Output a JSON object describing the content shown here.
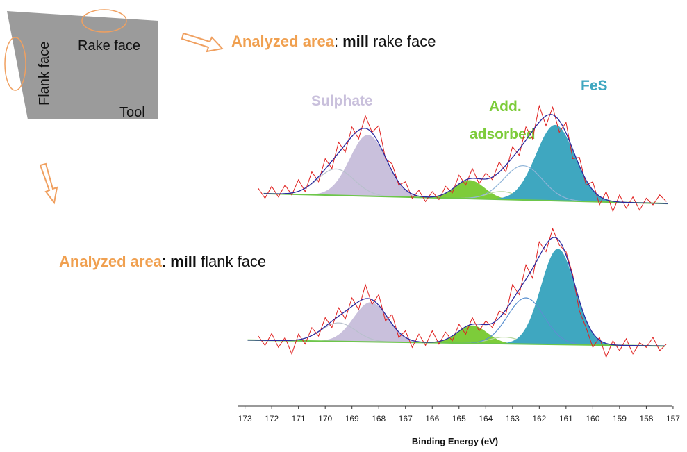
{
  "tool_diagram": {
    "labels": [
      "Rake face",
      "Flank face",
      "Tool"
    ]
  },
  "chart_data": [
    {
      "type": "spectrum",
      "caption": [
        "Analyzed area",
        ":",
        "mill",
        "rake face"
      ],
      "xlim": [
        173.25,
        157.05
      ],
      "ylim": [
        -40,
        190
      ],
      "baseline": {
        "color": "#6dc64a",
        "x": [
          172.3,
          157.2
        ],
        "values": [
          17,
          2
        ]
      },
      "components": [
        {
          "name": "Sulphate",
          "color": "#c9c0dc",
          "filled": true,
          "center": 168.4,
          "height": 93,
          "fwhm": 1.6
        },
        {
          "color": "#b8c0cc",
          "filled": false,
          "center": 169.6,
          "height": 40,
          "fwhm": 1.6
        },
        {
          "name": [
            "Add.",
            "adsorbed"
          ],
          "color": "#7dcc3a",
          "filled": true,
          "center": 164.6,
          "height": 28,
          "fwhm": 1.3
        },
        {
          "color": "#b8d8a0",
          "filled": false,
          "center": 163.4,
          "height": 12,
          "fwhm": 1.3
        },
        {
          "name": "FeS",
          "color": "#3fa7c0",
          "filled": true,
          "center": 161.4,
          "height": 115,
          "fwhm": 1.7
        },
        {
          "color": "#8fb4d8",
          "filled": false,
          "center": 162.6,
          "height": 52,
          "fwhm": 1.7
        }
      ],
      "envelope_color": "#2a2aa0",
      "x": [
        172.5,
        172.25,
        172,
        171.75,
        171.5,
        171.25,
        171,
        170.75,
        170.5,
        170.25,
        170,
        169.75,
        169.5,
        169.25,
        169,
        168.75,
        168.5,
        168.25,
        168,
        167.75,
        167.5,
        167.25,
        167,
        166.75,
        166.5,
        166.25,
        166,
        165.75,
        165.5,
        165.25,
        165,
        164.75,
        164.5,
        164.25,
        164,
        163.75,
        163.5,
        163.25,
        163,
        162.75,
        162.5,
        162.25,
        162,
        161.75,
        161.5,
        161.25,
        161,
        160.75,
        160.5,
        160.25,
        160,
        159.75,
        159.5,
        159.25,
        159,
        158.75,
        158.5,
        158.25,
        158,
        157.75,
        157.5,
        157.25
      ],
      "raw": {
        "color": "#e0201f",
        "values": [
          25,
          10,
          28,
          12,
          30,
          15,
          38,
          20,
          50,
          35,
          70,
          55,
          95,
          80,
          118,
          100,
          135,
          110,
          120,
          70,
          62,
          30,
          35,
          10,
          22,
          5,
          20,
          8,
          28,
          18,
          45,
          30,
          55,
          32,
          48,
          38,
          65,
          50,
          88,
          75,
          118,
          100,
          150,
          120,
          148,
          110,
          125,
          70,
          72,
          30,
          35,
          0,
          20,
          -10,
          15,
          -5,
          12,
          -8,
          10,
          0,
          15,
          5
        ]
      }
    },
    {
      "type": "spectrum",
      "caption": [
        "Analyzed area",
        ":",
        "mill",
        "flank face"
      ],
      "xlim": [
        173.25,
        157.05
      ],
      "ylim": [
        -40,
        190
      ],
      "xticks": [
        173,
        172,
        171,
        170,
        169,
        168,
        167,
        166,
        165,
        164,
        163,
        162,
        161,
        160,
        159,
        158,
        157
      ],
      "xlabel": "Binding Energy (eV)",
      "baseline": {
        "color": "#6dc64a",
        "x": [
          172.9,
          157.3
        ],
        "values": [
          16,
          7
        ]
      },
      "components": [
        {
          "color": "#c9c0dc",
          "filled": true,
          "center": 168.3,
          "height": 60,
          "fwhm": 1.5
        },
        {
          "color": "#b8c0cc",
          "filled": false,
          "center": 169.5,
          "height": 28,
          "fwhm": 1.5
        },
        {
          "color": "#7dcc3a",
          "filled": true,
          "center": 164.5,
          "height": 27,
          "fwhm": 1.3
        },
        {
          "color": "#b8d8a0",
          "filled": false,
          "center": 163.3,
          "height": 10,
          "fwhm": 1.3
        },
        {
          "color": "#3fa7c0",
          "filled": true,
          "center": 161.3,
          "height": 145,
          "fwhm": 1.5
        },
        {
          "color": "#5a90d0",
          "filled": false,
          "center": 162.5,
          "height": 70,
          "fwhm": 1.6
        }
      ],
      "envelope_color": "#2a2aa0",
      "x": [
        172.5,
        172.25,
        172,
        171.75,
        171.5,
        171.25,
        171,
        170.75,
        170.5,
        170.25,
        170,
        169.75,
        169.5,
        169.25,
        169,
        168.75,
        168.5,
        168.25,
        168,
        167.75,
        167.5,
        167.25,
        167,
        166.75,
        166.5,
        166.25,
        166,
        165.75,
        165.5,
        165.25,
        165,
        164.75,
        164.5,
        164.25,
        164,
        163.75,
        163.5,
        163.25,
        163,
        162.75,
        162.5,
        162.25,
        162,
        161.75,
        161.5,
        161.25,
        161,
        160.75,
        160.5,
        160.25,
        160,
        159.75,
        159.5,
        159.25,
        159,
        158.75,
        158.5,
        158.25,
        158,
        157.75,
        157.5,
        157.25
      ],
      "raw": {
        "color": "#e0201f",
        "values": [
          22,
          8,
          26,
          5,
          20,
          -5,
          25,
          10,
          35,
          22,
          50,
          35,
          65,
          48,
          80,
          62,
          100,
          70,
          85,
          45,
          55,
          20,
          30,
          5,
          25,
          8,
          30,
          10,
          28,
          15,
          40,
          25,
          50,
          30,
          45,
          35,
          60,
          55,
          100,
          85,
          130,
          110,
          165,
          150,
          185,
          160,
          150,
          115,
          60,
          35,
          5,
          20,
          -10,
          15,
          0,
          18,
          -5,
          12,
          5,
          20,
          0,
          10
        ]
      }
    }
  ]
}
